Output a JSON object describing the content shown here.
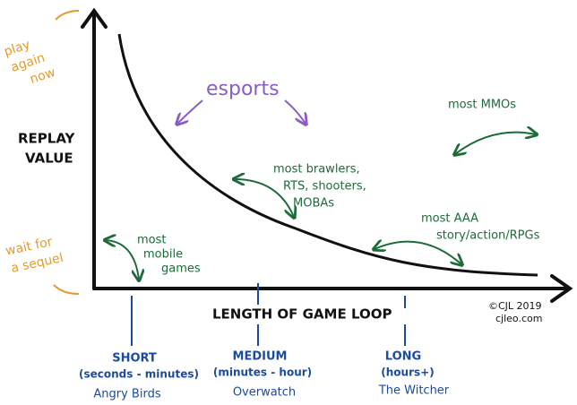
{
  "y_axis": {
    "label": [
      "REPLAY",
      "VALUE"
    ],
    "top": [
      "play",
      "again",
      "now"
    ],
    "bottom": [
      "wait for",
      "a sequel"
    ]
  },
  "x_axis": {
    "label": "LENGTH OF GAME LOOP",
    "groups": [
      {
        "name": "SHORT",
        "range": "(seconds - minutes)",
        "example": "Angry Birds"
      },
      {
        "name": "MEDIUM",
        "range": "(minutes - hour)",
        "example": "Overwatch"
      },
      {
        "name": "LONG",
        "range": "(hours+)",
        "example": "The Witcher"
      }
    ]
  },
  "annotations": {
    "esports": "esports",
    "mmos": "most MMOs",
    "brawlers": [
      "most brawlers,",
      "RTS, shooters,",
      "MOBAs"
    ],
    "aaa": [
      "most AAA",
      "story/action/RPGs"
    ],
    "mobile": [
      "most",
      "mobile",
      "games"
    ]
  },
  "credit": [
    "©CJL 2019",
    "cjleo.com"
  ]
}
